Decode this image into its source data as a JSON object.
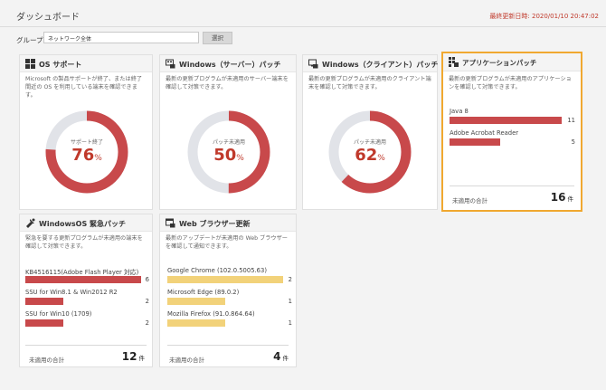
{
  "page": {
    "title": "ダッシュボード",
    "last_updated": "最終更新日時: 2020/01/10 20:47:02"
  },
  "group": {
    "label": "グループ:",
    "value": "ネットワーク全体",
    "select_label": "選択"
  },
  "cards": {
    "os_support": {
      "title": "OS サポート",
      "icon": "windows-grid-icon",
      "description": "Microsoft の製品サポートが終了、または終了間近の OS を利用している端末を確認できます。",
      "donut_label": "サポート終了",
      "percent": 76,
      "percent_text": "76",
      "unit": "%"
    },
    "windows_server": {
      "title": "Windows（サーバー）パッチ",
      "icon": "server-patch-icon",
      "description": "最新の更新プログラムが未適用のサーバー端末を確認して対策できます。",
      "donut_label": "パッチ未適用",
      "percent": 50,
      "percent_text": "50",
      "unit": "%"
    },
    "windows_client": {
      "title": "Windows（クライアント）パッチ",
      "icon": "client-patch-icon",
      "description": "最新の更新プログラムが未適用のクライアント端末を確認して対策できます。",
      "donut_label": "パッチ未適用",
      "percent": 62,
      "percent_text": "62",
      "unit": "%"
    },
    "app_patch": {
      "title": "アプリケーションパッチ",
      "icon": "app-patch-icon",
      "description": "最新の更新プログラムが未適用のアプリケーションを確認して対策できます。",
      "items": [
        {
          "label": "Java 8",
          "count": "11",
          "fraction": 1.0
        },
        {
          "label": "Adobe Acrobat Reader",
          "count": "5",
          "fraction": 0.45
        }
      ],
      "total_label": "未適用の合計",
      "total_value": "16",
      "total_unit": "件"
    },
    "windows_urgent": {
      "title": "WindowsOS 緊急パッチ",
      "icon": "urgent-patch-icon",
      "description": "緊急を要する更新プログラムが未適用の端末を確認して対策できます。",
      "items": [
        {
          "label": "KB4516115(Adobe Flash Player 対応)",
          "count": "6",
          "fraction": 1.0
        },
        {
          "label": "SSU for Win8.1 & Win2012 R2",
          "count": "2",
          "fraction": 0.33
        },
        {
          "label": "SSU for Win10 (1709)",
          "count": "2",
          "fraction": 0.33
        }
      ],
      "total_label": "未適用の合計",
      "total_value": "12",
      "total_unit": "件"
    },
    "web_browser": {
      "title": "Web ブラウザー更新",
      "icon": "browser-update-icon",
      "description": "最新のアップデートが未適用の Web ブラウザーを確認して通知できます。",
      "items": [
        {
          "label": "Google Chrome (102.0.5005.63)",
          "count": "2",
          "fraction": 1.0
        },
        {
          "label": "Microsoft Edge (89.0.2)",
          "count": "1",
          "fraction": 0.5
        },
        {
          "label": "Mozilla Firefox (91.0.864.64)",
          "count": "1",
          "fraction": 0.5
        }
      ],
      "total_label": "未適用の合計",
      "total_value": "4",
      "total_unit": "件"
    }
  },
  "colors": {
    "accent_red": "#c8494b",
    "donut_gray": "#e1e3e8",
    "bar_yellow": "#f2d27a",
    "highlight": "#f0a830"
  }
}
